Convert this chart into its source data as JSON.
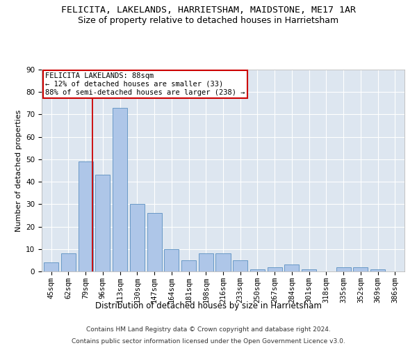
{
  "title": "FELICITA, LAKELANDS, HARRIETSHAM, MAIDSTONE, ME17 1AR",
  "subtitle": "Size of property relative to detached houses in Harrietsham",
  "xlabel": "Distribution of detached houses by size in Harrietsham",
  "ylabel": "Number of detached properties",
  "categories": [
    "45sqm",
    "62sqm",
    "79sqm",
    "96sqm",
    "113sqm",
    "130sqm",
    "147sqm",
    "164sqm",
    "181sqm",
    "198sqm",
    "216sqm",
    "233sqm",
    "250sqm",
    "267sqm",
    "284sqm",
    "301sqm",
    "318sqm",
    "335sqm",
    "352sqm",
    "369sqm",
    "386sqm"
  ],
  "values": [
    4,
    8,
    49,
    43,
    73,
    30,
    26,
    10,
    5,
    8,
    8,
    5,
    1,
    2,
    3,
    1,
    0,
    2,
    2,
    1,
    0
  ],
  "bar_color": "#aec6e8",
  "bar_edge_color": "#5a8fc0",
  "vline_color": "#cc0000",
  "vline_x": 2.42,
  "annotation_line1": "FELICITA LAKELANDS: 88sqm",
  "annotation_line2": "← 12% of detached houses are smaller (33)",
  "annotation_line3": "88% of semi-detached houses are larger (238) →",
  "annotation_box_color": "#ffffff",
  "annotation_box_edge_color": "#cc0000",
  "footer_line1": "Contains HM Land Registry data © Crown copyright and database right 2024.",
  "footer_line2": "Contains public sector information licensed under the Open Government Licence v3.0.",
  "ylim": [
    0,
    90
  ],
  "yticks": [
    0,
    10,
    20,
    30,
    40,
    50,
    60,
    70,
    80,
    90
  ],
  "title_fontsize": 9.5,
  "subtitle_fontsize": 9,
  "xlabel_fontsize": 8.5,
  "ylabel_fontsize": 8,
  "tick_fontsize": 7.5,
  "annotation_fontsize": 7.5,
  "footer_fontsize": 6.5
}
